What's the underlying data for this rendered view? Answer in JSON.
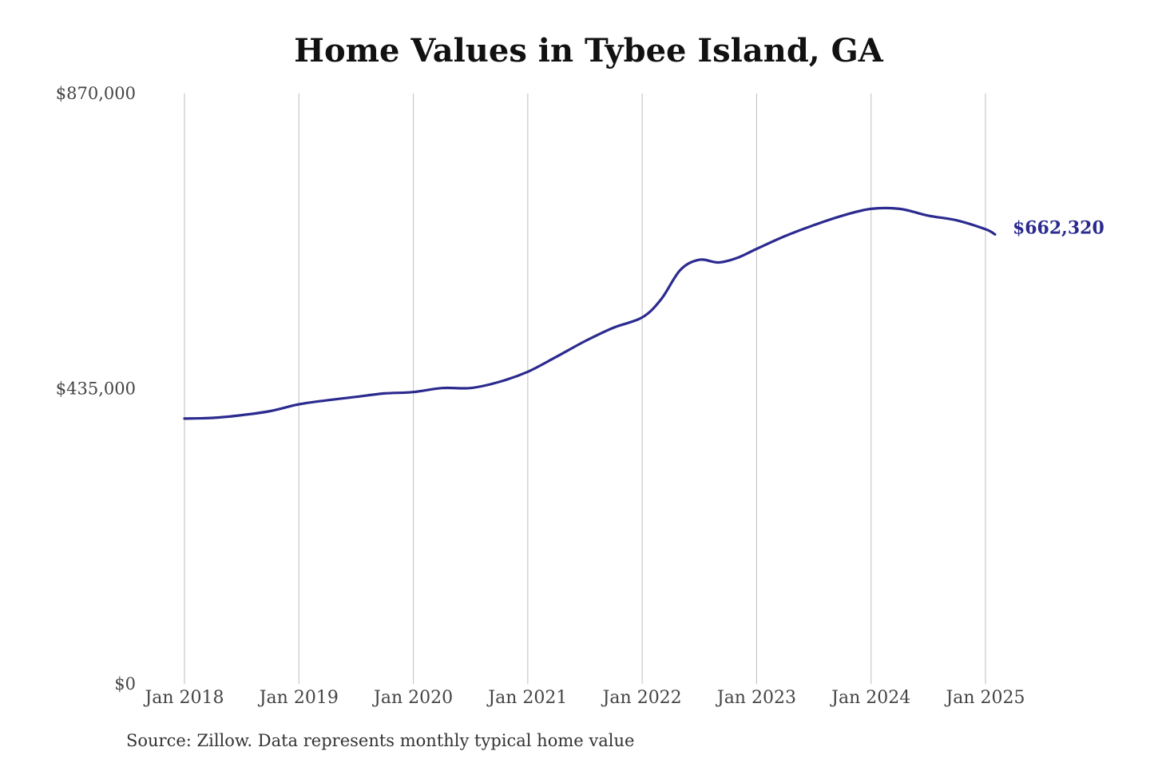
{
  "colors": {
    "line": "#2b2a8f",
    "grid": "#c8c8c8",
    "text": "#444444"
  },
  "source_note": "Source: Zillow. Data represents monthly typical home value",
  "chart_data": {
    "type": "line",
    "title": "Home Values in Tybee Island, GA",
    "xlabel": "",
    "ylabel": "",
    "ylim": [
      0,
      870000
    ],
    "yticks": [
      {
        "value": 0,
        "label": "$0"
      },
      {
        "value": 435000,
        "label": "$435,000"
      },
      {
        "value": 870000,
        "label": "$870,000"
      }
    ],
    "xticks": [
      {
        "value": "2018-01",
        "label": "Jan 2018"
      },
      {
        "value": "2019-01",
        "label": "Jan 2019"
      },
      {
        "value": "2020-01",
        "label": "Jan 2020"
      },
      {
        "value": "2021-01",
        "label": "Jan 2021"
      },
      {
        "value": "2022-01",
        "label": "Jan 2022"
      },
      {
        "value": "2023-01",
        "label": "Jan 2023"
      },
      {
        "value": "2024-01",
        "label": "Jan 2024"
      },
      {
        "value": "2025-01",
        "label": "Jan 2025"
      }
    ],
    "grid": "vertical",
    "end_label": "$662,320",
    "series": [
      {
        "x": [
          "2018-01",
          "2018-04",
          "2018-07",
          "2018-10",
          "2019-01",
          "2019-04",
          "2019-07",
          "2019-10",
          "2020-01",
          "2020-04",
          "2020-07",
          "2020-10",
          "2021-01",
          "2021-04",
          "2021-07",
          "2021-10",
          "2022-01",
          "2022-03",
          "2022-05",
          "2022-07",
          "2022-09",
          "2022-11",
          "2023-01",
          "2023-04",
          "2023-07",
          "2023-10",
          "2024-01",
          "2024-04",
          "2024-07",
          "2024-10",
          "2025-01",
          "2025-02"
        ],
        "values": [
          391000,
          392000,
          396000,
          402000,
          412000,
          418000,
          423000,
          428000,
          430000,
          436000,
          436000,
          445000,
          460000,
          482000,
          505000,
          525000,
          540000,
          567000,
          610000,
          625000,
          621000,
          628000,
          641000,
          660000,
          676000,
          690000,
          700000,
          700000,
          690000,
          683000,
          670000,
          662320
        ]
      }
    ]
  }
}
